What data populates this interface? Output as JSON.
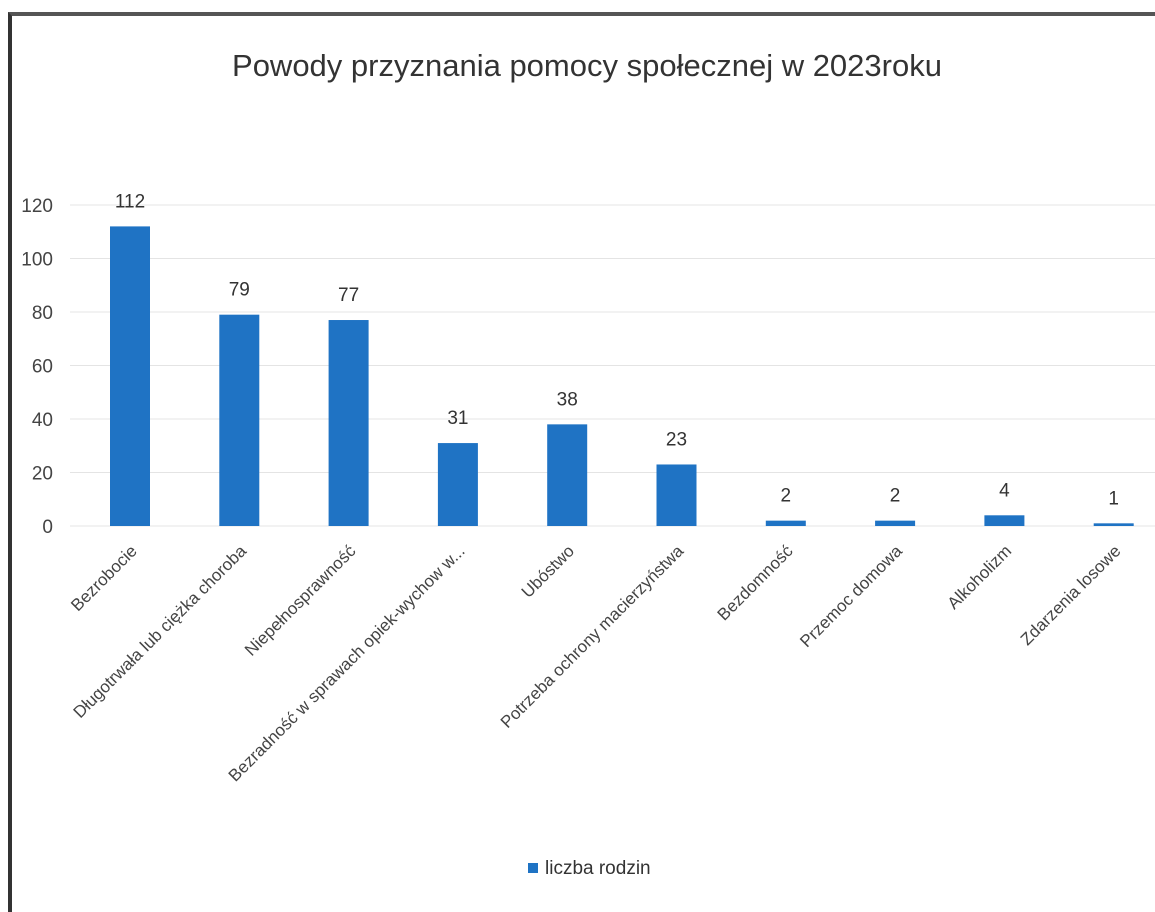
{
  "chart_data": {
    "type": "bar",
    "title": "Powody przyznania pomocy społecznej w 2023roku",
    "xlabel": "",
    "ylabel": "",
    "ylim": [
      0,
      120
    ],
    "yticks": [
      0,
      20,
      40,
      60,
      80,
      100,
      120
    ],
    "categories": [
      "Bezrobocie",
      "Długotrwała lub ciężka choroba",
      "Niepełnosprawność",
      "Bezradność w sprawach opiek-wychow w...",
      "Ubóstwo",
      "Potrzeba ochrony macierzyństwa",
      "Bezdomność",
      "Przemoc domowa",
      "Alkoholizm",
      "Zdarzenia losowe"
    ],
    "series": [
      {
        "name": "liczba rodzin",
        "values": [
          112,
          79,
          77,
          31,
          38,
          23,
          2,
          2,
          4,
          1
        ],
        "color": "#1f73c4"
      }
    ],
    "grid": true,
    "legend_position": "bottom"
  }
}
